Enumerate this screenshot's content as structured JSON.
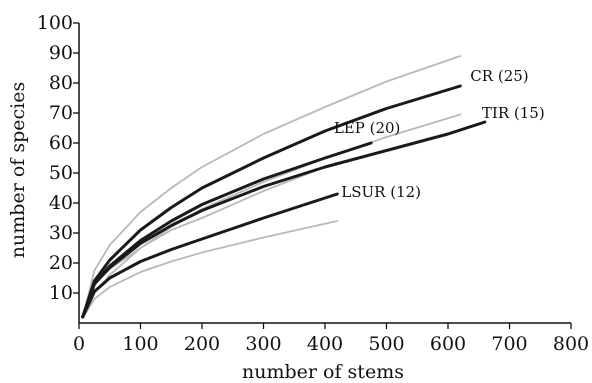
{
  "chart_data": {
    "type": "line",
    "title": "",
    "xlabel": "number of stems",
    "ylabel": "number of species",
    "xlim": [
      0,
      800
    ],
    "ylim": [
      0,
      100
    ],
    "x_ticks": [
      "0",
      "100",
      "200",
      "300",
      "400",
      "500",
      "600",
      "700",
      "800"
    ],
    "y_ticks": [
      "10",
      "20",
      "30",
      "40",
      "50",
      "60",
      "70",
      "80",
      "90",
      "100"
    ],
    "grid": false,
    "series": [
      {
        "name": "CR (25)",
        "role": "rarefaction curve",
        "color": "#1a1a1a",
        "x": [
          6,
          25,
          50,
          100,
          150,
          200,
          300,
          400,
          500,
          620
        ],
        "y": [
          2,
          14,
          21,
          31,
          38.5,
          45,
          55,
          64,
          71.5,
          79
        ]
      },
      {
        "name": "TIR (15)",
        "role": "rarefaction curve",
        "color": "#1a1a1a",
        "x": [
          6,
          25,
          50,
          100,
          150,
          200,
          300,
          400,
          500,
          600,
          660
        ],
        "y": [
          2,
          13,
          18.5,
          26.5,
          32.5,
          37.5,
          45.5,
          52,
          57.5,
          63,
          67
        ]
      },
      {
        "name": "LEP (20)",
        "role": "rarefaction curve",
        "color": "#1a1a1a",
        "x": [
          6,
          25,
          50,
          100,
          150,
          200,
          300,
          400,
          475
        ],
        "y": [
          2,
          13,
          19,
          27.5,
          34,
          39.5,
          48,
          55,
          60
        ]
      },
      {
        "name": "LSUR (12)",
        "role": "rarefaction curve",
        "color": "#1a1a1a",
        "x": [
          6,
          25,
          50,
          100,
          150,
          200,
          300,
          420
        ],
        "y": [
          2,
          10.5,
          15,
          20.5,
          24.5,
          28,
          35,
          43
        ]
      },
      {
        "role": "confidence bound",
        "color": "#b9b9b9",
        "x": [
          10,
          25,
          50,
          100,
          150,
          200,
          300,
          400,
          500,
          620
        ],
        "y": [
          5,
          17.5,
          26,
          37,
          45,
          52,
          63,
          72,
          80.5,
          89
        ]
      },
      {
        "role": "confidence bound",
        "color": "#b9b9b9",
        "x": [
          10,
          25,
          50,
          100,
          150,
          200,
          300,
          400,
          500,
          620
        ],
        "y": [
          3,
          10,
          16,
          25,
          32,
          38,
          47,
          55,
          62,
          69.5
        ]
      },
      {
        "role": "confidence bound",
        "color": "#b9b9b9",
        "x": [
          10,
          25,
          50,
          100,
          150,
          200,
          300,
          420
        ],
        "y": [
          3,
          8,
          12,
          17,
          20.5,
          23.5,
          28.5,
          34
        ]
      },
      {
        "role": "confidence bound",
        "color": "#b9b9b9",
        "x": [
          10,
          25,
          50,
          100,
          150,
          200,
          300,
          400
        ],
        "y": [
          4,
          13,
          18,
          25,
          31,
          35,
          44,
          52
        ]
      }
    ]
  }
}
